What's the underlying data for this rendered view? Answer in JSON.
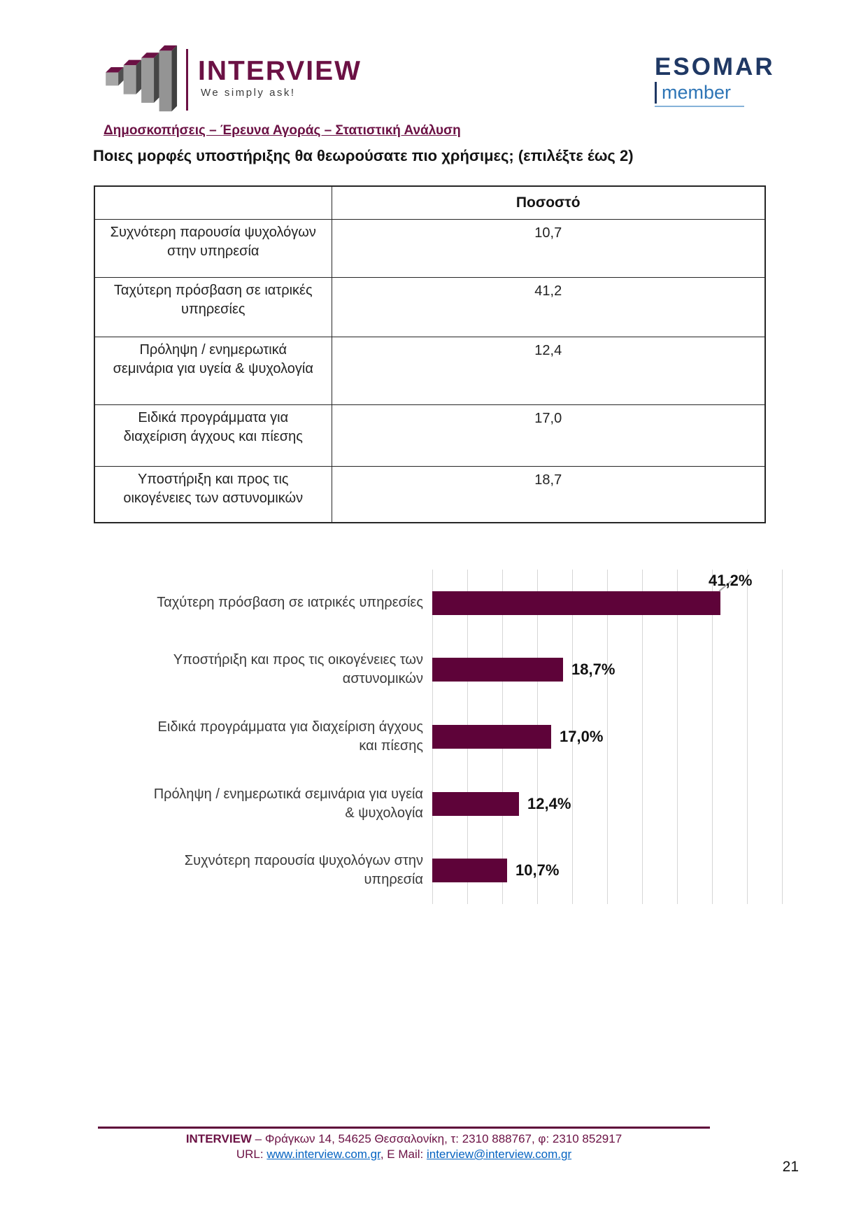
{
  "page": {
    "number": "21"
  },
  "header": {
    "logo": {
      "name": "INTERVIEW",
      "tagline": "We simply ask!"
    },
    "esomar": {
      "name": "ESOMAR",
      "member": "member"
    },
    "subtitle": "Δημοσκοπήσεις – Έρευνα Αγοράς – Στατιστική Ανάλυση"
  },
  "question": "Ποιες μορφές υποστήριξης θα θεωρούσατε πιο χρήσιμες; (επιλέξτε έως 2)",
  "table": {
    "value_header": "Ποσοστό",
    "rows": [
      {
        "label": "Συχνότερη παρουσία ψυχολόγων στην υπηρεσία",
        "value": "10,7"
      },
      {
        "label": "Ταχύτερη πρόσβαση σε ιατρικές υπηρεσίες",
        "value": "41,2"
      },
      {
        "label": "Πρόληψη / ενημερωτικά σεμινάρια για υγεία & ψυχολογία",
        "value": "12,4"
      },
      {
        "label": "Ειδικά προγράμματα για διαχείριση άγχους και πίεσης",
        "value": "17,0"
      },
      {
        "label": "Υποστήριξη και προς τις οικογένειες των αστυνομικών",
        "value": "18,7"
      }
    ]
  },
  "chart_data": {
    "type": "bar",
    "orientation": "horizontal",
    "title": "",
    "categories": [
      "Ταχύτερη πρόσβαση σε ιατρικές υπηρεσίες",
      "Υποστήριξη και προς τις οικογένειες των αστυνομικών",
      "Ειδικά προγράμματα για διαχείριση άγχους και πίεσης",
      "Πρόληψη / ενημερωτικά σεμινάρια για υγεία & ψυχολογία",
      "Συχνότερη παρουσία ψυχολόγων στην υπηρεσία"
    ],
    "category_lines": [
      [
        "Ταχύτερη πρόσβαση σε ιατρικές υπηρεσίες"
      ],
      [
        "Υποστήριξη και προς τις οικογένειες των",
        "αστυνομικών"
      ],
      [
        "Ειδικά προγράμματα για διαχείριση άγχους",
        "και πίεσης"
      ],
      [
        "Πρόληψη / ενημερωτικά σεμινάρια για υγεία",
        "& ψυχολογία"
      ],
      [
        "Συχνότερη παρουσία ψυχολόγων στην",
        "υπηρεσία"
      ]
    ],
    "values": [
      41.2,
      18.7,
      17.0,
      12.4,
      10.7
    ],
    "value_labels": [
      "41,2%",
      "18,7%",
      "17,0%",
      "12,4%",
      "10,7%"
    ],
    "xlim": [
      0,
      50
    ],
    "gridline_step": 5,
    "grid": true,
    "legend": false,
    "bar_color": "#5E0339",
    "callout": {
      "index": 0,
      "label": "41,2%"
    }
  },
  "footer": {
    "line1_bold": "INTERVIEW",
    "line1_rest": " – Φράγκων 14, 54625 Θεσσαλονίκη, τ: 2310 888767, φ: 2310 852917",
    "url_label": "URL: ",
    "url_link": "www.interview.com.gr",
    "email_label": ", E Mail: ",
    "email_link": "interview@interview.com.gr"
  },
  "colors": {
    "brand_maroon": "#6B1144",
    "bar_maroon": "#5E0339",
    "esomar_navy": "#1F3864",
    "member_blue": "#2E75B6",
    "link_blue": "#0563C1",
    "gridline": "#D6D6D6"
  }
}
